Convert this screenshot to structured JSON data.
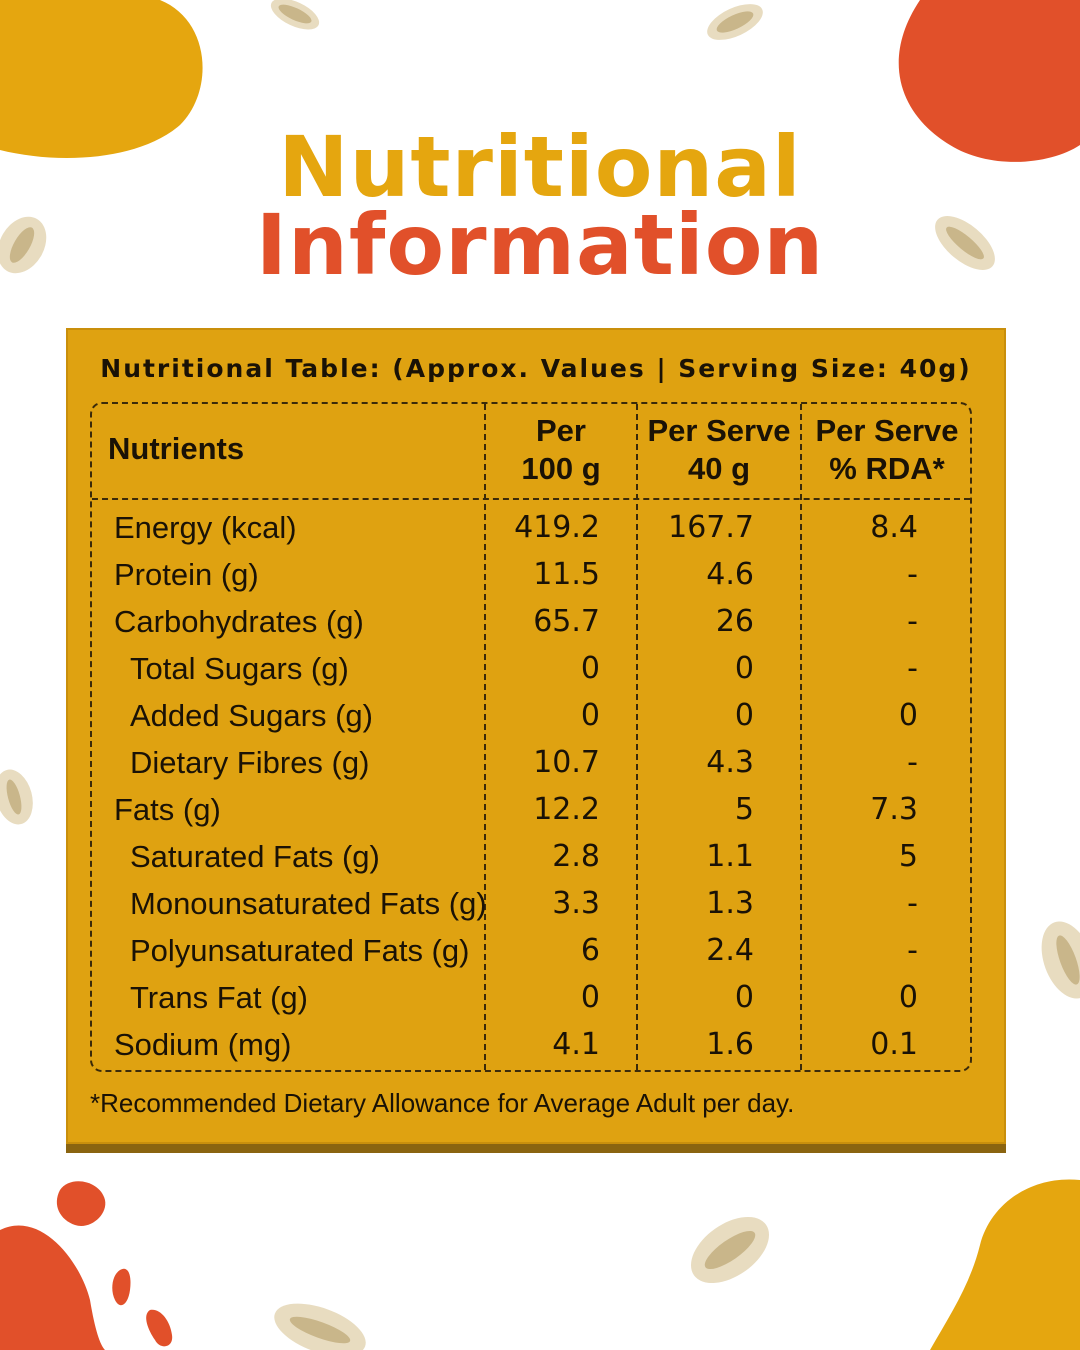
{
  "title": {
    "line1": "Nutritional",
    "line2": "Information"
  },
  "colors": {
    "gold": "#dfa211",
    "orange": "#e1502a",
    "title_gold": "#e5a60f"
  },
  "table": {
    "heading": "Nutritional Table: (Approx. Values | Serving Size: 40g)",
    "headers": {
      "nutrients": "Nutrients",
      "per100_line1": "Per",
      "per100_line2": "100 g",
      "serve_line1": "Per Serve",
      "serve_line2": "40 g",
      "rda_line1": "Per Serve",
      "rda_line2": "% RDA*"
    },
    "rows": [
      {
        "name": "Energy (kcal)",
        "sub": false,
        "per100": "419.2",
        "serve": "167.7",
        "rda": "8.4"
      },
      {
        "name": "Protein (g)",
        "sub": false,
        "per100": "11.5",
        "serve": "4.6",
        "rda": "-"
      },
      {
        "name": "Carbohydrates (g)",
        "sub": false,
        "per100": "65.7",
        "serve": "26",
        "rda": "-"
      },
      {
        "name": "Total Sugars (g)",
        "sub": true,
        "per100": "0",
        "serve": "0",
        "rda": "-"
      },
      {
        "name": "Added Sugars (g)",
        "sub": true,
        "per100": "0",
        "serve": "0",
        "rda": "0"
      },
      {
        "name": "Dietary Fibres (g)",
        "sub": true,
        "per100": "10.7",
        "serve": "4.3",
        "rda": "-"
      },
      {
        "name": "Fats (g)",
        "sub": false,
        "per100": "12.2",
        "serve": "5",
        "rda": "7.3"
      },
      {
        "name": "Saturated Fats (g)",
        "sub": true,
        "per100": "2.8",
        "serve": "1.1",
        "rda": "5"
      },
      {
        "name": "Monounsaturated Fats (g)",
        "sub": true,
        "per100": "3.3",
        "serve": "1.3",
        "rda": "-"
      },
      {
        "name": "Polyunsaturated Fats (g)",
        "sub": true,
        "per100": "6",
        "serve": "2.4",
        "rda": "-"
      },
      {
        "name": "Trans Fat (g)",
        "sub": true,
        "per100": "0",
        "serve": "0",
        "rda": "0"
      },
      {
        "name": "Sodium (mg)",
        "sub": false,
        "per100": "4.1",
        "serve": "1.6",
        "rda": "0.1"
      }
    ],
    "footnote": "*Recommended Dietary Allowance for Average Adult per day."
  }
}
